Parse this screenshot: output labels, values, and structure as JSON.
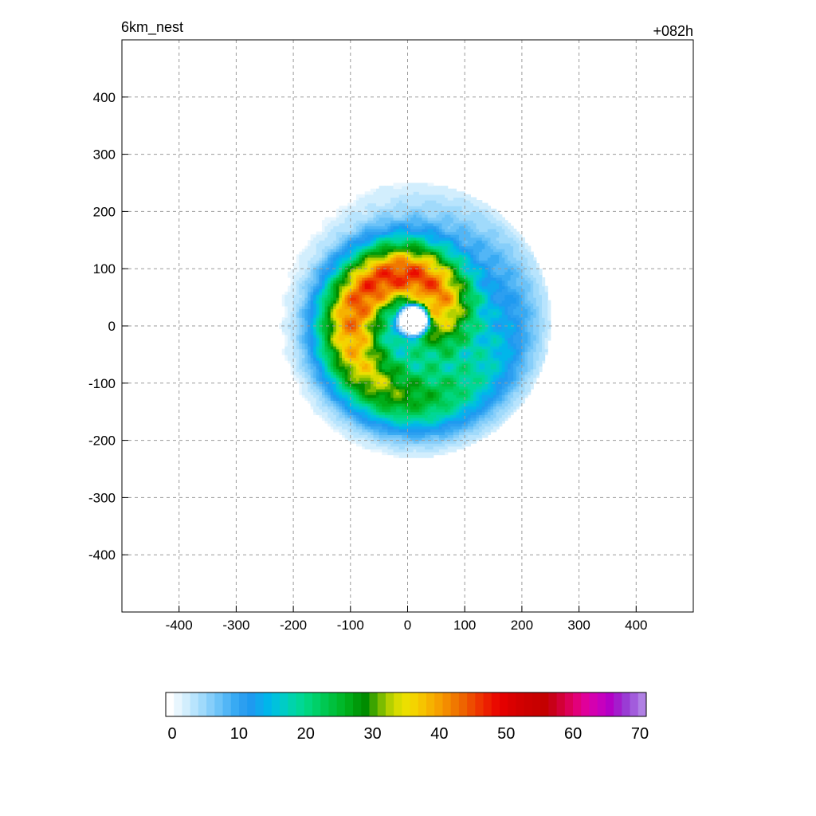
{
  "header": {
    "left_title": "6km_nest",
    "right_title": "+082h"
  },
  "chart_data": {
    "type": "heatmap",
    "title": "",
    "xlabel": "",
    "ylabel": "",
    "xlim": [
      -500,
      500
    ],
    "ylim": [
      -500,
      500
    ],
    "x_ticks": [
      -400,
      -300,
      -200,
      -100,
      0,
      100,
      200,
      300,
      400
    ],
    "y_ticks": [
      400,
      300,
      200,
      100,
      0,
      -100,
      -200,
      -300,
      -400
    ],
    "grid": true,
    "storm": {
      "center": [
        10,
        10
      ],
      "eye_radius": 22,
      "field_peak": 46,
      "max_extent": 240
    },
    "colorbar": {
      "min": 0,
      "max": 70,
      "ticks": [
        0,
        10,
        20,
        30,
        40,
        50,
        60,
        70
      ],
      "colors": [
        "#ffffff",
        "#e8f6fe",
        "#d2eefd",
        "#b8e4fd",
        "#a0dafb",
        "#86cefa",
        "#6cc3f8",
        "#52b6f6",
        "#38aaf3",
        "#2c9ff0",
        "#1e9af0",
        "#10a8ee",
        "#00b6ea",
        "#00c2dc",
        "#00ccc6",
        "#00d3ac",
        "#00d796",
        "#00d67e",
        "#00d068",
        "#00c852",
        "#00c03e",
        "#00b82a",
        "#00ac18",
        "#009a0a",
        "#008c00",
        "#3ca400",
        "#7cbc00",
        "#b4d000",
        "#d8dc00",
        "#ecdf00",
        "#f4d400",
        "#f6c400",
        "#f6b200",
        "#f6a000",
        "#f48c00",
        "#f07800",
        "#ee6400",
        "#ee4c00",
        "#ee3400",
        "#ec1e00",
        "#ea0a00",
        "#e40000",
        "#da0000",
        "#d20000",
        "#cc0000",
        "#c80000",
        "#c40000",
        "#c80018",
        "#d20036",
        "#dc0058",
        "#e2007a",
        "#e0009a",
        "#d400b0",
        "#c600be",
        "#b400c6",
        "#a41ccc",
        "#9a3cd4",
        "#a25cdc",
        "#b080e4"
      ]
    }
  }
}
